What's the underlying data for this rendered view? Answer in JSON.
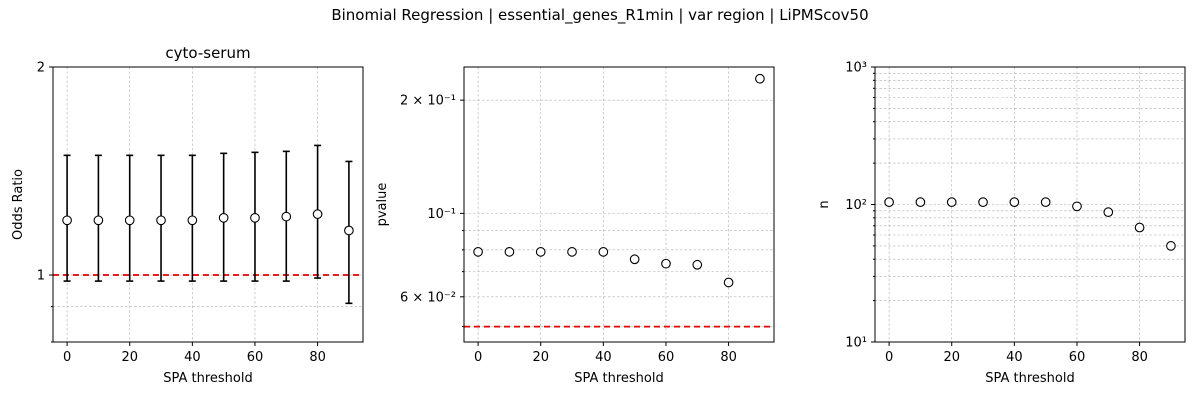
{
  "figure": {
    "suptitle": "Binomial Regression | essential_genes_R1min | var region | LiPMScov50"
  },
  "chart_data": [
    {
      "type": "scatter",
      "title": "cyto-serum",
      "xlabel": "SPA threshold",
      "ylabel": "Odds Ratio",
      "yscale": "log",
      "xlim": [
        -4.5,
        94.5
      ],
      "ylim": [
        0.8,
        2.0
      ],
      "x": [
        0,
        10,
        20,
        30,
        40,
        50,
        60,
        70,
        80,
        90
      ],
      "y": [
        1.2,
        1.2,
        1.2,
        1.2,
        1.2,
        1.21,
        1.21,
        1.215,
        1.225,
        1.16
      ],
      "err_low": [
        0.98,
        0.98,
        0.98,
        0.98,
        0.98,
        0.98,
        0.98,
        0.98,
        0.99,
        0.91
      ],
      "err_high": [
        1.49,
        1.49,
        1.49,
        1.49,
        1.49,
        1.5,
        1.505,
        1.51,
        1.54,
        1.46
      ],
      "reference_line": 1.0,
      "grid": true,
      "xticks": [
        0,
        20,
        40,
        60,
        80
      ],
      "xtick_labels": [
        "0",
        "20",
        "40",
        "60",
        "80"
      ],
      "yticks_major": [
        1,
        2
      ],
      "ytick_labels": [
        "1",
        "2"
      ]
    },
    {
      "type": "scatter",
      "title": "",
      "xlabel": "SPA threshold",
      "ylabel": "pvalue",
      "yscale": "log",
      "xlim": [
        -4.5,
        94.5
      ],
      "ylim": [
        0.0455,
        0.245
      ],
      "x": [
        0,
        10,
        20,
        30,
        40,
        50,
        60,
        70,
        80,
        90
      ],
      "y": [
        0.079,
        0.079,
        0.079,
        0.079,
        0.079,
        0.0755,
        0.0735,
        0.073,
        0.0655,
        0.228
      ],
      "reference_line": 0.05,
      "grid": true,
      "xticks": [
        0,
        20,
        40,
        60,
        80
      ],
      "xtick_labels": [
        "0",
        "20",
        "40",
        "60",
        "80"
      ],
      "yticks_labeled": [
        0.06,
        0.1,
        0.2
      ],
      "ytick_labels": [
        "6 × 10⁻²",
        "10⁻¹",
        "2 × 10⁻¹"
      ]
    },
    {
      "type": "scatter",
      "title": "",
      "xlabel": "SPA threshold",
      "ylabel": "n",
      "yscale": "log",
      "xlim": [
        -4.5,
        94.5
      ],
      "ylim": [
        10,
        1000
      ],
      "x": [
        0,
        10,
        20,
        30,
        40,
        50,
        60,
        70,
        80,
        90
      ],
      "y": [
        104,
        104,
        104,
        104,
        104,
        104,
        97,
        88,
        68,
        50
      ],
      "grid": true,
      "xticks": [
        0,
        20,
        40,
        60,
        80
      ],
      "xtick_labels": [
        "0",
        "20",
        "40",
        "60",
        "80"
      ],
      "yticks_major": [
        10,
        100,
        1000
      ],
      "ytick_labels": [
        "10¹",
        "10²",
        "10³"
      ]
    }
  ]
}
